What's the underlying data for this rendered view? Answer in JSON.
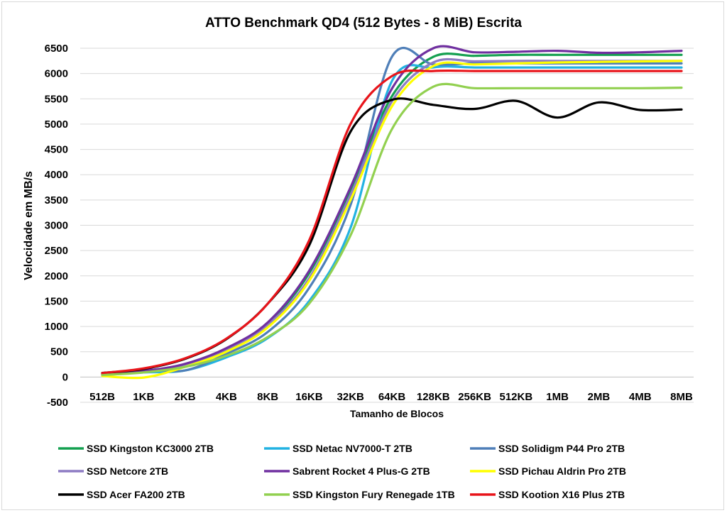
{
  "chart_data": {
    "type": "line",
    "title": "ATTO Benchmark QD4 (512 Bytes - 8 MiB) Escrita",
    "xlabel": "Tamanho de Blocos",
    "ylabel": "Velocidade em MB/s",
    "ylim": [
      -500,
      6500
    ],
    "ytick_step": 500,
    "grid": true,
    "legend_position": "bottom",
    "categories": [
      "512B",
      "1KB",
      "2KB",
      "4KB",
      "8KB",
      "16KB",
      "32KB",
      "64KB",
      "128KB",
      "256KB",
      "512KB",
      "1MB",
      "2MB",
      "4MB",
      "8MB"
    ],
    "series": [
      {
        "name": "SSD Kingston KC3000 2TB",
        "color": "#14a050",
        "values": [
          60,
          110,
          250,
          540,
          1060,
          2050,
          3700,
          5550,
          6330,
          6350,
          6370,
          6370,
          6370,
          6370,
          6370
        ]
      },
      {
        "name": "SSD Netac NV7000-T 2TB",
        "color": "#22b2e2",
        "values": [
          50,
          90,
          130,
          390,
          770,
          1500,
          2950,
          5850,
          6120,
          6120,
          6120,
          6120,
          6120,
          6120,
          6120
        ]
      },
      {
        "name": "SSD Solidigm P44 Pro 2TB",
        "color": "#4f7fb8",
        "values": [
          50,
          150,
          130,
          460,
          890,
          1760,
          3400,
          6330,
          6180,
          6200,
          6200,
          6200,
          6200,
          6200,
          6200
        ]
      },
      {
        "name": "SSD Netcore 2TB",
        "color": "#8e7cc3",
        "values": [
          60,
          120,
          250,
          550,
          1030,
          1950,
          3600,
          5450,
          6220,
          6240,
          6250,
          6250,
          6250,
          6250,
          6250
        ]
      },
      {
        "name": "Sabrent Rocket 4 Plus-G 2TB",
        "color": "#7030a0",
        "values": [
          60,
          120,
          260,
          570,
          1080,
          2100,
          3750,
          5700,
          6500,
          6420,
          6430,
          6450,
          6410,
          6420,
          6450
        ]
      },
      {
        "name": "SSD Pichau Aldrin Pro 2TB",
        "color": "#ffff00",
        "values": [
          20,
          -10,
          200,
          500,
          980,
          1900,
          3500,
          5350,
          6150,
          6180,
          6200,
          6220,
          6230,
          6240,
          6250
        ]
      },
      {
        "name": "SSD Acer FA200 2TB",
        "color": "#000000",
        "values": [
          80,
          160,
          360,
          750,
          1450,
          2600,
          4850,
          5480,
          5380,
          5300,
          5460,
          5130,
          5430,
          5280,
          5290
        ]
      },
      {
        "name": "SSD Kingston Fury Renegade 1TB",
        "color": "#92d050",
        "values": [
          40,
          90,
          200,
          420,
          790,
          1450,
          2800,
          4900,
          5740,
          5710,
          5710,
          5710,
          5710,
          5710,
          5720
        ]
      },
      {
        "name": "SSD Kootion X16 Plus 2TB",
        "color": "#e8141a",
        "values": [
          80,
          170,
          370,
          760,
          1450,
          2700,
          5000,
          5950,
          6050,
          6050,
          6050,
          6050,
          6050,
          6050,
          6050
        ]
      }
    ]
  }
}
